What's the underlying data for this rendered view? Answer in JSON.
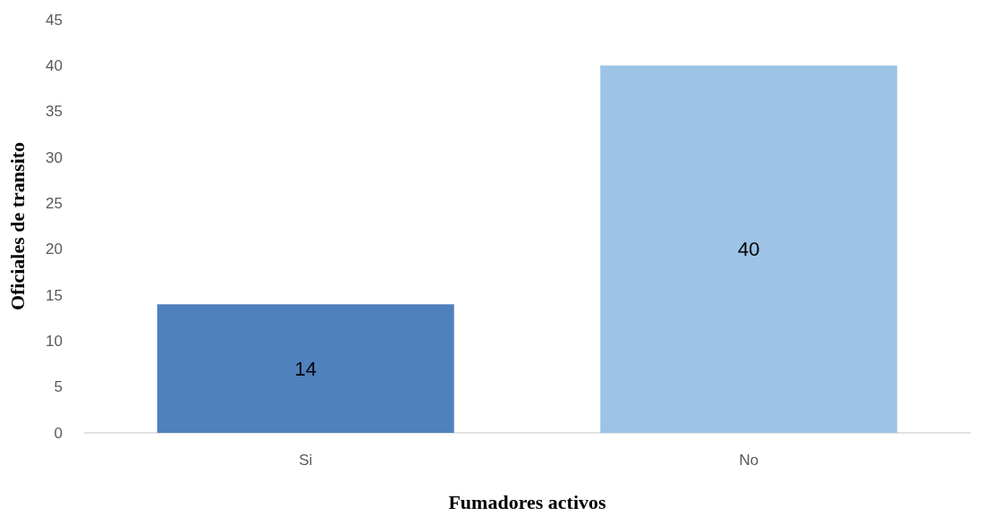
{
  "chart_data": {
    "type": "bar",
    "categories": [
      "Si",
      "No"
    ],
    "values": [
      14,
      40
    ],
    "colors": [
      "#4f81bd",
      "#9dc3e6"
    ],
    "ylim": [
      0,
      45
    ],
    "yticks": [
      0,
      5,
      10,
      15,
      20,
      25,
      30,
      35,
      40,
      45
    ],
    "xlabel": "Fumadores activos",
    "ylabel": "Oficiales de transito",
    "data_labels": true
  }
}
